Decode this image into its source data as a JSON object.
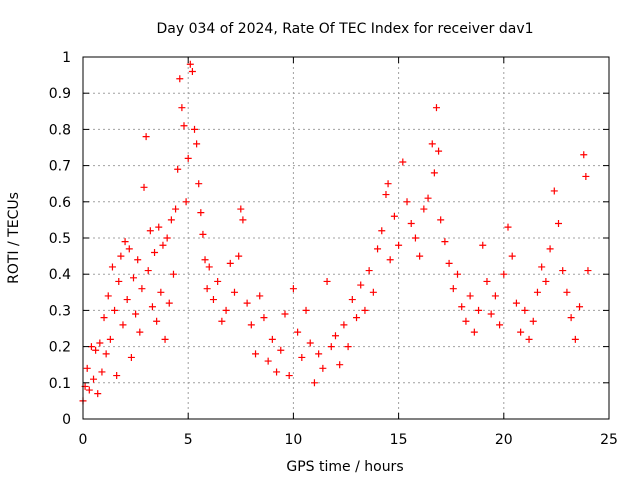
{
  "chart_data": {
    "type": "scatter",
    "title": "Day 034 of 2024, Rate Of TEC Index for receiver dav1",
    "xlabel": "GPS time / hours",
    "ylabel": "ROTI / TECUs",
    "xlim": [
      0,
      25
    ],
    "ylim": [
      0,
      1
    ],
    "x_ticks": [
      "0",
      "5",
      "10",
      "15",
      "20",
      "25"
    ],
    "y_ticks": [
      "0",
      "0.1",
      "0.2",
      "0.3",
      "0.4",
      "0.5",
      "0.6",
      "0.7",
      "0.8",
      "0.9",
      "1"
    ],
    "grid": true,
    "marker": "+",
    "series_color": "#ff0000",
    "series": [
      {
        "values": [
          [
            0.0,
            0.05
          ],
          [
            0.1,
            0.09
          ],
          [
            0.2,
            0.14
          ],
          [
            0.3,
            0.08
          ],
          [
            0.4,
            0.2
          ],
          [
            0.5,
            0.11
          ],
          [
            0.6,
            0.19
          ],
          [
            0.7,
            0.07
          ],
          [
            0.8,
            0.21
          ],
          [
            0.9,
            0.13
          ],
          [
            1.0,
            0.28
          ],
          [
            1.1,
            0.18
          ],
          [
            1.2,
            0.34
          ],
          [
            1.3,
            0.22
          ],
          [
            1.4,
            0.42
          ],
          [
            1.5,
            0.3
          ],
          [
            1.6,
            0.12
          ],
          [
            1.7,
            0.38
          ],
          [
            1.8,
            0.45
          ],
          [
            1.9,
            0.26
          ],
          [
            2.0,
            0.49
          ],
          [
            2.1,
            0.33
          ],
          [
            2.2,
            0.47
          ],
          [
            2.3,
            0.17
          ],
          [
            2.4,
            0.39
          ],
          [
            2.5,
            0.29
          ],
          [
            2.6,
            0.44
          ],
          [
            2.7,
            0.24
          ],
          [
            2.8,
            0.36
          ],
          [
            2.9,
            0.64
          ],
          [
            3.0,
            0.78
          ],
          [
            3.1,
            0.41
          ],
          [
            3.2,
            0.52
          ],
          [
            3.3,
            0.31
          ],
          [
            3.4,
            0.46
          ],
          [
            3.5,
            0.27
          ],
          [
            3.6,
            0.53
          ],
          [
            3.7,
            0.35
          ],
          [
            3.8,
            0.48
          ],
          [
            3.9,
            0.22
          ],
          [
            4.0,
            0.5
          ],
          [
            4.1,
            0.32
          ],
          [
            4.2,
            0.55
          ],
          [
            4.3,
            0.4
          ],
          [
            4.4,
            0.58
          ],
          [
            4.5,
            0.69
          ],
          [
            4.6,
            0.94
          ],
          [
            4.7,
            0.86
          ],
          [
            4.8,
            0.81
          ],
          [
            4.9,
            0.6
          ],
          [
            5.0,
            0.72
          ],
          [
            5.1,
            0.98
          ],
          [
            5.2,
            0.96
          ],
          [
            5.3,
            0.8
          ],
          [
            5.4,
            0.76
          ],
          [
            5.5,
            0.65
          ],
          [
            5.6,
            0.57
          ],
          [
            5.7,
            0.51
          ],
          [
            5.8,
            0.44
          ],
          [
            5.9,
            0.36
          ],
          [
            6.0,
            0.42
          ],
          [
            6.2,
            0.33
          ],
          [
            6.4,
            0.38
          ],
          [
            6.6,
            0.27
          ],
          [
            6.8,
            0.3
          ],
          [
            7.0,
            0.43
          ],
          [
            7.2,
            0.35
          ],
          [
            7.4,
            0.45
          ],
          [
            7.5,
            0.58
          ],
          [
            7.6,
            0.55
          ],
          [
            7.8,
            0.32
          ],
          [
            8.0,
            0.26
          ],
          [
            8.2,
            0.18
          ],
          [
            8.4,
            0.34
          ],
          [
            8.6,
            0.28
          ],
          [
            8.8,
            0.16
          ],
          [
            9.0,
            0.22
          ],
          [
            9.2,
            0.13
          ],
          [
            9.4,
            0.19
          ],
          [
            9.6,
            0.29
          ],
          [
            9.8,
            0.12
          ],
          [
            10.0,
            0.36
          ],
          [
            10.2,
            0.24
          ],
          [
            10.4,
            0.17
          ],
          [
            10.6,
            0.3
          ],
          [
            10.8,
            0.21
          ],
          [
            11.0,
            0.1
          ],
          [
            11.2,
            0.18
          ],
          [
            11.4,
            0.14
          ],
          [
            11.6,
            0.38
          ],
          [
            11.8,
            0.2
          ],
          [
            12.0,
            0.23
          ],
          [
            12.2,
            0.15
          ],
          [
            12.4,
            0.26
          ],
          [
            12.6,
            0.2
          ],
          [
            12.8,
            0.33
          ],
          [
            13.0,
            0.28
          ],
          [
            13.2,
            0.37
          ],
          [
            13.4,
            0.3
          ],
          [
            13.6,
            0.41
          ],
          [
            13.8,
            0.35
          ],
          [
            14.0,
            0.47
          ],
          [
            14.2,
            0.52
          ],
          [
            14.4,
            0.62
          ],
          [
            14.5,
            0.65
          ],
          [
            14.6,
            0.44
          ],
          [
            14.8,
            0.56
          ],
          [
            15.0,
            0.48
          ],
          [
            15.2,
            0.71
          ],
          [
            15.4,
            0.6
          ],
          [
            15.6,
            0.54
          ],
          [
            15.8,
            0.5
          ],
          [
            16.0,
            0.45
          ],
          [
            16.2,
            0.58
          ],
          [
            16.4,
            0.61
          ],
          [
            16.6,
            0.76
          ],
          [
            16.7,
            0.68
          ],
          [
            16.8,
            0.86
          ],
          [
            16.9,
            0.74
          ],
          [
            17.0,
            0.55
          ],
          [
            17.2,
            0.49
          ],
          [
            17.4,
            0.43
          ],
          [
            17.6,
            0.36
          ],
          [
            17.8,
            0.4
          ],
          [
            18.0,
            0.31
          ],
          [
            18.2,
            0.27
          ],
          [
            18.4,
            0.34
          ],
          [
            18.6,
            0.24
          ],
          [
            18.8,
            0.3
          ],
          [
            19.0,
            0.48
          ],
          [
            19.2,
            0.38
          ],
          [
            19.4,
            0.29
          ],
          [
            19.6,
            0.34
          ],
          [
            19.8,
            0.26
          ],
          [
            20.0,
            0.4
          ],
          [
            20.2,
            0.53
          ],
          [
            20.4,
            0.45
          ],
          [
            20.6,
            0.32
          ],
          [
            20.8,
            0.24
          ],
          [
            21.0,
            0.3
          ],
          [
            21.2,
            0.22
          ],
          [
            21.4,
            0.27
          ],
          [
            21.6,
            0.35
          ],
          [
            21.8,
            0.42
          ],
          [
            22.0,
            0.38
          ],
          [
            22.2,
            0.47
          ],
          [
            22.4,
            0.63
          ],
          [
            22.6,
            0.54
          ],
          [
            22.8,
            0.41
          ],
          [
            23.0,
            0.35
          ],
          [
            23.2,
            0.28
          ],
          [
            23.4,
            0.22
          ],
          [
            23.6,
            0.31
          ],
          [
            23.8,
            0.73
          ],
          [
            23.9,
            0.67
          ],
          [
            24.0,
            0.41
          ]
        ]
      }
    ]
  }
}
